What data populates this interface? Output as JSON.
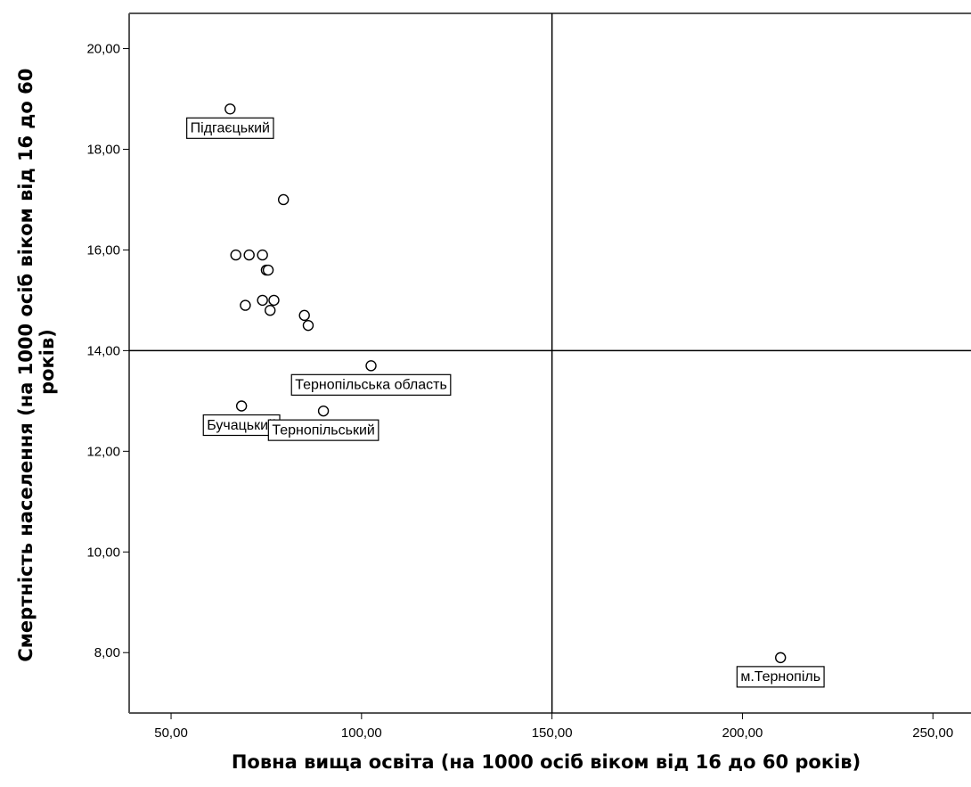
{
  "chart_data": {
    "type": "scatter",
    "title": "",
    "xlabel": "Повна вища освіта (на 1000 осіб віком від 16 до 60 років)",
    "ylabel_line1": "Смертність населення (на 1000 осіб віком від 16 до 60",
    "ylabel_line2": "років)",
    "xlim": [
      39,
      260
    ],
    "ylim": [
      6.8,
      20.7
    ],
    "x_ticks": [
      {
        "value": 50,
        "label": "50,00"
      },
      {
        "value": 100,
        "label": "100,00"
      },
      {
        "value": 150,
        "label": "150,00"
      },
      {
        "value": 200,
        "label": "200,00"
      },
      {
        "value": 250,
        "label": "250,00"
      }
    ],
    "y_ticks": [
      {
        "value": 8,
        "label": "8,00"
      },
      {
        "value": 10,
        "label": "10,00"
      },
      {
        "value": 12,
        "label": "12,00"
      },
      {
        "value": 14,
        "label": "14,00"
      },
      {
        "value": 16,
        "label": "16,00"
      },
      {
        "value": 18,
        "label": "18,00"
      },
      {
        "value": 20,
        "label": "20,00"
      }
    ],
    "reference_lines": {
      "x": 150,
      "y": 14
    },
    "grid": false,
    "points": [
      {
        "x": 65.5,
        "y": 18.8,
        "label": "Підгаєцький"
      },
      {
        "x": 79.5,
        "y": 17.0
      },
      {
        "x": 67.0,
        "y": 15.9
      },
      {
        "x": 70.5,
        "y": 15.9
      },
      {
        "x": 74.0,
        "y": 15.9
      },
      {
        "x": 75.0,
        "y": 15.6
      },
      {
        "x": 75.5,
        "y": 15.6
      },
      {
        "x": 69.5,
        "y": 14.9
      },
      {
        "x": 74.0,
        "y": 15.0
      },
      {
        "x": 77.0,
        "y": 15.0
      },
      {
        "x": 76.0,
        "y": 14.8
      },
      {
        "x": 85.0,
        "y": 14.7
      },
      {
        "x": 86.0,
        "y": 14.5
      },
      {
        "x": 102.5,
        "y": 13.7,
        "label": "Тернопільська область"
      },
      {
        "x": 68.5,
        "y": 12.9,
        "label": "Бучацький"
      },
      {
        "x": 90.0,
        "y": 12.8,
        "label": "Тернопільський"
      },
      {
        "x": 210.0,
        "y": 7.9,
        "label": "м.Тернопіль"
      }
    ]
  }
}
